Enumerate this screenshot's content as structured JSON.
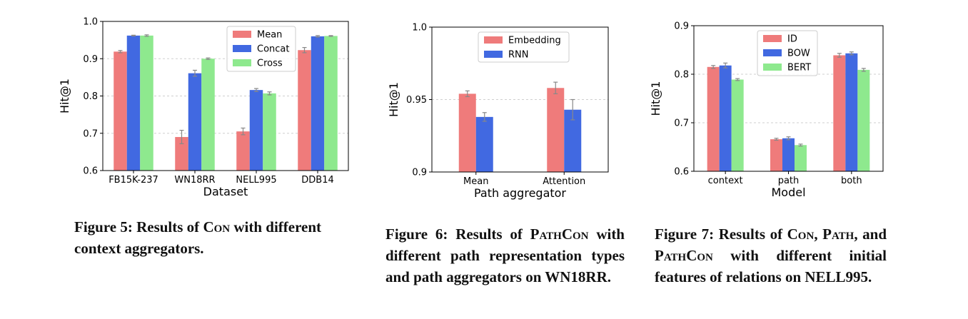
{
  "chart_data": [
    {
      "type": "bar",
      "categories": [
        "FB15K-237",
        "WN18RR",
        "NELL995",
        "DDB14"
      ],
      "series": [
        {
          "name": "Mean",
          "values": [
            0.919,
            0.69,
            0.705,
            0.923
          ],
          "errors": [
            0.003,
            0.018,
            0.009,
            0.007
          ]
        },
        {
          "name": "Concat",
          "values": [
            0.962,
            0.861,
            0.816,
            0.96
          ],
          "errors": [
            0.001,
            0.008,
            0.004,
            0.002
          ]
        },
        {
          "name": "Cross",
          "values": [
            0.962,
            0.9,
            0.807,
            0.961
          ],
          "errors": [
            0.002,
            0.002,
            0.004,
            0.001
          ]
        }
      ],
      "colors": [
        "#ef7b7b",
        "#4169e1",
        "#8ee98e"
      ],
      "xlabel": "Dataset",
      "ylabel": "Hit@1",
      "ylim": [
        0.6,
        1.0
      ],
      "yticks": [
        "0.6",
        "0.7",
        "0.8",
        "0.9",
        "1.0"
      ],
      "grid": true,
      "legend": "top-right"
    },
    {
      "type": "bar",
      "categories": [
        "Mean",
        "Attention"
      ],
      "series": [
        {
          "name": "Embedding",
          "values": [
            0.954,
            0.958
          ],
          "errors": [
            0.002,
            0.004
          ]
        },
        {
          "name": "RNN",
          "values": [
            0.938,
            0.943
          ],
          "errors": [
            0.003,
            0.007
          ]
        }
      ],
      "colors": [
        "#ef7b7b",
        "#4169e1"
      ],
      "xlabel": "Path aggregator",
      "ylabel": "Hit@1",
      "ylim": [
        0.9,
        1.0
      ],
      "yticks": [
        "0.9",
        "0.95",
        "1.0"
      ],
      "grid": true,
      "legend": "top-center"
    },
    {
      "type": "bar",
      "categories": [
        "context",
        "path",
        "both"
      ],
      "series": [
        {
          "name": "ID",
          "values": [
            0.815,
            0.666,
            0.839
          ],
          "errors": [
            0.003,
            0.002,
            0.004
          ]
        },
        {
          "name": "BOW",
          "values": [
            0.818,
            0.668,
            0.843
          ],
          "errors": [
            0.005,
            0.003,
            0.003
          ]
        },
        {
          "name": "BERT",
          "values": [
            0.789,
            0.654,
            0.809
          ],
          "errors": [
            0.002,
            0.002,
            0.003
          ]
        }
      ],
      "colors": [
        "#ef7b7b",
        "#4169e1",
        "#8ee98e"
      ],
      "xlabel": "Model",
      "ylabel": "Hit@1",
      "ylim": [
        0.6,
        0.9
      ],
      "yticks": [
        "0.6",
        "0.7",
        "0.8",
        "0.9"
      ],
      "grid": true,
      "legend": "top-center"
    }
  ],
  "captions": {
    "fig5": {
      "prefix": "Figure 5: Results of ",
      "sc1": "Con",
      "rest": " with different context aggregators."
    },
    "fig6": {
      "prefix": "Figure 6: Results of ",
      "sc1": "PathCon",
      "rest": " with different path representation types and path aggregators on WN18RR."
    },
    "fig7": {
      "prefix": "Figure 7: Results of ",
      "sc1": "Con",
      "mid1": ", ",
      "sc2": "Path",
      "mid2": ", and ",
      "sc3": "PathCon",
      "rest": " with different initial features of relations on NELL995."
    }
  }
}
